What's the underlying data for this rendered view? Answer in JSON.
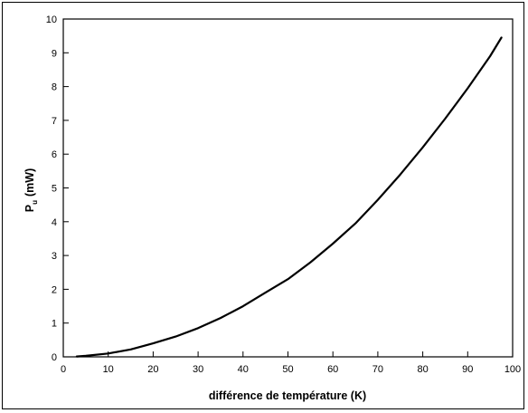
{
  "chart_data": {
    "type": "line",
    "xlabel": "différence de température (K)",
    "ylabel_main": "P",
    "ylabel_sub": "u",
    "ylabel_unit": "(mW)",
    "xlim": [
      0,
      100
    ],
    "ylim": [
      0,
      10
    ],
    "xticks": [
      "0",
      "10",
      "20",
      "30",
      "40",
      "50",
      "60",
      "70",
      "80",
      "90",
      "100"
    ],
    "yticks": [
      "0",
      "1",
      "2",
      "3",
      "4",
      "5",
      "6",
      "7",
      "8",
      "9",
      "10"
    ],
    "grid": false,
    "line_color": "#000000",
    "series": [
      {
        "x": [
          3,
          5,
          10,
          15,
          20,
          25,
          30,
          35,
          40,
          45,
          50,
          55,
          60,
          65,
          70,
          75,
          80,
          85,
          90,
          95,
          97.5
        ],
        "y": [
          0.01,
          0.03,
          0.1,
          0.22,
          0.4,
          0.6,
          0.85,
          1.15,
          1.5,
          1.9,
          2.3,
          2.8,
          3.35,
          3.95,
          4.65,
          5.4,
          6.2,
          7.05,
          7.95,
          8.9,
          9.45
        ]
      }
    ]
  }
}
